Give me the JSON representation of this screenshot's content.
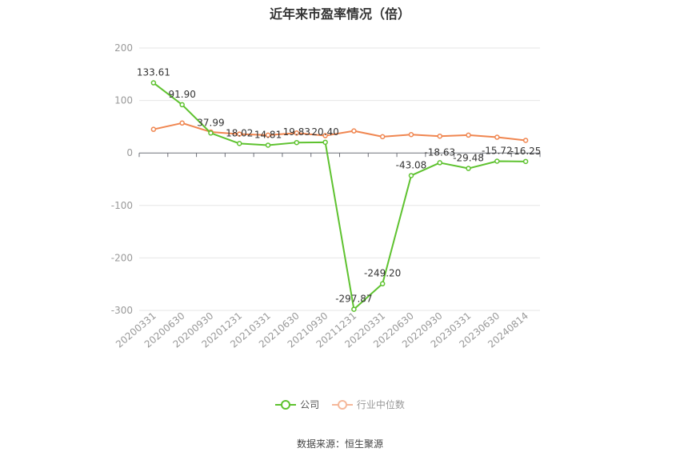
{
  "chart_data": {
    "type": "line",
    "title": "近年来市盈率情况（倍）",
    "categories": [
      "20200331",
      "20200630",
      "20200930",
      "20201231",
      "20210331",
      "20210630",
      "20210930",
      "20211231",
      "20220331",
      "20220630",
      "20220930",
      "20230331",
      "20230630",
      "20240814"
    ],
    "series": [
      {
        "name": "公司",
        "color": "#5ec22f",
        "values": [
          133.61,
          91.9,
          37.99,
          18.02,
          14.81,
          19.83,
          20.4,
          -297.87,
          -249.2,
          -43.08,
          -18.63,
          -29.48,
          -15.72,
          -16.25
        ],
        "labels": [
          "133.61",
          "91.90",
          "37.99",
          "18.02",
          "14.81",
          "19.83",
          "20.40",
          "-297.87",
          "-249.20",
          "-43.08",
          "-18.63",
          "-29.48",
          "-15.72",
          "-16.25"
        ]
      },
      {
        "name": "行业中位数",
        "color": "#f08650",
        "values": [
          45,
          57,
          40,
          36,
          34,
          38,
          33,
          42,
          31,
          35,
          32,
          34,
          30,
          24
        ]
      }
    ],
    "yticks": [
      "200",
      "100",
      "0",
      "-100",
      "-200",
      "-300"
    ],
    "ylim": [
      -300,
      200
    ],
    "grid": true,
    "legend_position": "bottom"
  },
  "source_text": "数据来源：恒生聚源"
}
